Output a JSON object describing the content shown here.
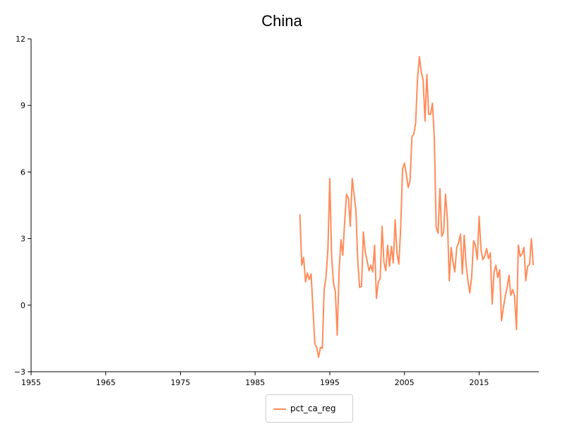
{
  "chart_data": {
    "type": "line",
    "title": "China",
    "xlabel": "",
    "ylabel": "",
    "xlim": [
      1955,
      2023
    ],
    "ylim": [
      -3,
      12
    ],
    "x_ticks": [
      "1955",
      "1965",
      "1975",
      "1985",
      "1995",
      "2005",
      "2015"
    ],
    "y_ticks": [
      "12",
      "9",
      "6",
      "3",
      "0",
      "−3"
    ],
    "legend_position": "bottom-center",
    "grid": false,
    "series": [
      {
        "name": "pct_ca_reg",
        "color": "#ff8c5a",
        "x": [
          1991.0,
          1991.25,
          1991.5,
          1991.75,
          1992.0,
          1992.25,
          1992.5,
          1992.75,
          1993.0,
          1993.25,
          1993.5,
          1993.75,
          1994.0,
          1994.25,
          1994.5,
          1994.75,
          1995.0,
          1995.25,
          1995.5,
          1995.75,
          1996.0,
          1996.25,
          1996.5,
          1996.75,
          1997.0,
          1997.25,
          1997.5,
          1997.75,
          1998.0,
          1998.25,
          1998.5,
          1998.75,
          1999.0,
          1999.25,
          1999.5,
          1999.75,
          2000.0,
          2000.25,
          2000.5,
          2000.75,
          2001.0,
          2001.25,
          2001.5,
          2001.75,
          2002.0,
          2002.25,
          2002.5,
          2002.75,
          2003.0,
          2003.25,
          2003.5,
          2003.75,
          2004.0,
          2004.25,
          2004.5,
          2004.75,
          2005.0,
          2005.25,
          2005.5,
          2005.75,
          2006.0,
          2006.25,
          2006.5,
          2006.75,
          2007.0,
          2007.25,
          2007.5,
          2007.75,
          2008.0,
          2008.25,
          2008.5,
          2008.75,
          2009.0,
          2009.25,
          2009.5,
          2009.75,
          2010.0,
          2010.25,
          2010.5,
          2010.75,
          2011.0,
          2011.25,
          2011.5,
          2011.75,
          2012.0,
          2012.25,
          2012.5,
          2012.75,
          2013.0,
          2013.25,
          2013.5,
          2013.75,
          2014.0,
          2014.25,
          2014.5,
          2014.75,
          2015.0,
          2015.25,
          2015.5,
          2015.75,
          2016.0,
          2016.25,
          2016.5,
          2016.75,
          2017.0,
          2017.25,
          2017.5,
          2017.75,
          2018.0,
          2018.25,
          2018.5,
          2018.75,
          2019.0,
          2019.25,
          2019.5,
          2019.75,
          2020.0,
          2020.25,
          2020.5,
          2020.75,
          2021.0,
          2021.25,
          2021.5,
          2021.75,
          2022.0,
          2022.25
        ],
        "values": [
          4.1,
          1.8,
          2.15,
          1.05,
          1.45,
          1.15,
          1.4,
          -0.2,
          -1.75,
          -1.9,
          -2.35,
          -1.9,
          -1.95,
          0.7,
          1.3,
          2.5,
          5.7,
          2.2,
          1.0,
          0.6,
          -1.35,
          1.6,
          2.95,
          2.25,
          3.8,
          5.0,
          4.8,
          3.55,
          5.7,
          5.0,
          4.3,
          2.0,
          0.8,
          0.85,
          3.3,
          2.4,
          2.0,
          1.55,
          1.8,
          1.5,
          2.7,
          0.3,
          1.05,
          1.2,
          3.55,
          1.95,
          1.55,
          2.7,
          1.75,
          2.65,
          1.9,
          3.85,
          2.35,
          1.85,
          3.5,
          6.15,
          6.4,
          5.9,
          5.3,
          5.6,
          7.6,
          7.7,
          8.2,
          10.2,
          11.2,
          10.5,
          10.15,
          8.3,
          10.4,
          8.6,
          8.6,
          9.1,
          7.5,
          3.5,
          3.25,
          5.25,
          3.1,
          3.3,
          5.0,
          3.9,
          1.1,
          2.6,
          1.95,
          1.5,
          2.6,
          2.8,
          3.2,
          1.4,
          3.15,
          1.85,
          1.1,
          0.55,
          1.25,
          2.9,
          2.7,
          2.05,
          4.0,
          2.5,
          2.05,
          2.2,
          2.55,
          2.1,
          2.35,
          0.05,
          1.5,
          1.8,
          1.25,
          1.6,
          -0.7,
          -0.1,
          0.4,
          0.8,
          1.35,
          0.45,
          0.7,
          0.4,
          -1.1,
          2.7,
          2.2,
          2.3,
          2.6,
          1.1,
          1.75,
          1.85,
          3.0,
          1.8
        ]
      }
    ]
  }
}
